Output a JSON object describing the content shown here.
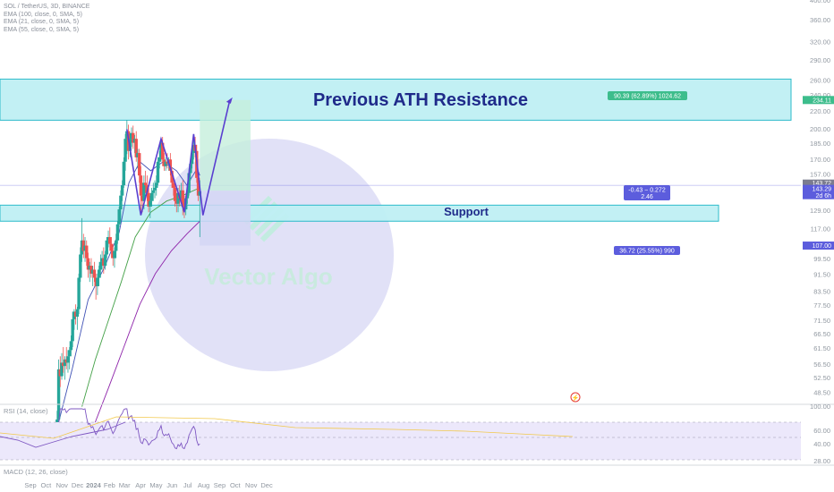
{
  "header": {
    "symbol": "SOL / TetherUS, 3D, BINANCE",
    "ema1": "EMA (100, close, 0, SMA, 5)",
    "ema2": "EMA (21, close, 0, SMA, 5)",
    "ema3": "EMA (55, close, 0, SMA, 5)"
  },
  "annotations": {
    "resistance_label": "Previous ATH Resistance",
    "support_label": "Support",
    "target_box": "90.39 (62.89%) 1024.62",
    "stop_box": "36.72 (25.55%) 990",
    "mid_box_line1": "-0.43 − 0.272",
    "mid_box_line2": "2.46",
    "watermark": "Vector Algo"
  },
  "price_tags": {
    "target": "234.11",
    "current": "143.29",
    "current_countdown": "2d 6h",
    "current_top": "143.72",
    "stop": "107.00"
  },
  "rsi_panel": {
    "label": "RSI (14, close)",
    "ticks": [
      "60.00",
      "40.00",
      "28.00"
    ],
    "top_value": "100.00"
  },
  "macd_panel": {
    "label": "MACD (12, 26, close)"
  },
  "colors": {
    "up_candle": "#26a69a",
    "down_candle": "#ef5350",
    "zone_fill": "#bff0f4",
    "zone_stroke": "#22b8c8",
    "pattern": "#5a3fd0",
    "ema21": "#3f51b5",
    "ema55": "#43a047",
    "ema100": "#8e24aa",
    "target_green": "#3dbd8c",
    "stop_purple": "#5c5ddd"
  },
  "chart_data": {
    "type": "candlestick",
    "title": "SOL / TetherUS, 3D, BINANCE",
    "y_axis": {
      "scale": "log",
      "range": [
        40,
        400
      ],
      "ticks": [
        400,
        360,
        320,
        290,
        260,
        240,
        220,
        200,
        185,
        170,
        157,
        143.29,
        129,
        117,
        107,
        99.5,
        91.5,
        83.5,
        77.5,
        71.5,
        66.5,
        61.5,
        56.5,
        52.5,
        48.5
      ]
    },
    "x_axis": {
      "labels": [
        "Sep",
        "Oct",
        "Nov",
        "Dec",
        "2024",
        "Feb",
        "Mar",
        "Apr",
        "May",
        "Jun",
        "Jul",
        "Aug",
        "Sep",
        "Oct",
        "Nov",
        "Dec"
      ]
    },
    "candles": [
      {
        "x": "2023-11-02",
        "o": 38,
        "h": 44,
        "l": 37,
        "c": 42
      },
      {
        "x": "2023-11-05",
        "o": 42,
        "h": 58,
        "l": 41,
        "c": 55
      },
      {
        "x": "2023-11-08",
        "o": 55,
        "h": 59,
        "l": 50,
        "c": 53
      },
      {
        "x": "2023-11-11",
        "o": 53,
        "h": 60,
        "l": 52,
        "c": 57
      },
      {
        "x": "2023-11-14",
        "o": 57,
        "h": 62,
        "l": 54,
        "c": 56
      },
      {
        "x": "2023-11-17",
        "o": 56,
        "h": 59,
        "l": 52,
        "c": 58
      },
      {
        "x": "2023-11-20",
        "o": 58,
        "h": 62,
        "l": 55,
        "c": 57
      },
      {
        "x": "2023-11-23",
        "o": 57,
        "h": 61,
        "l": 54,
        "c": 59
      },
      {
        "x": "2023-11-26",
        "o": 59,
        "h": 62,
        "l": 55,
        "c": 61
      },
      {
        "x": "2023-11-29",
        "o": 61,
        "h": 66,
        "l": 59,
        "c": 64
      },
      {
        "x": "2023-12-02",
        "o": 64,
        "h": 75,
        "l": 62,
        "c": 72
      },
      {
        "x": "2023-12-05",
        "o": 72,
        "h": 76,
        "l": 68,
        "c": 75
      },
      {
        "x": "2023-12-08",
        "o": 75,
        "h": 78,
        "l": 70,
        "c": 73
      },
      {
        "x": "2023-12-11",
        "o": 73,
        "h": 77,
        "l": 68,
        "c": 76
      },
      {
        "x": "2023-12-14",
        "o": 76,
        "h": 92,
        "l": 74,
        "c": 90
      },
      {
        "x": "2023-12-17",
        "o": 90,
        "h": 106,
        "l": 88,
        "c": 102
      },
      {
        "x": "2023-12-20",
        "o": 102,
        "h": 124,
        "l": 98,
        "c": 110
      },
      {
        "x": "2023-12-23",
        "o": 110,
        "h": 114,
        "l": 100,
        "c": 104
      },
      {
        "x": "2023-12-26",
        "o": 104,
        "h": 112,
        "l": 98,
        "c": 107
      },
      {
        "x": "2023-12-29",
        "o": 107,
        "h": 110,
        "l": 96,
        "c": 100
      },
      {
        "x": "2024-01-01",
        "o": 100,
        "h": 103,
        "l": 90,
        "c": 94
      },
      {
        "x": "2024-01-04",
        "o": 94,
        "h": 98,
        "l": 88,
        "c": 96
      },
      {
        "x": "2024-01-07",
        "o": 96,
        "h": 100,
        "l": 90,
        "c": 92
      },
      {
        "x": "2024-01-10",
        "o": 92,
        "h": 96,
        "l": 86,
        "c": 94
      },
      {
        "x": "2024-01-13",
        "o": 94,
        "h": 98,
        "l": 88,
        "c": 90
      },
      {
        "x": "2024-01-16",
        "o": 90,
        "h": 92,
        "l": 80,
        "c": 86
      },
      {
        "x": "2024-01-19",
        "o": 86,
        "h": 92,
        "l": 82,
        "c": 90
      },
      {
        "x": "2024-01-22",
        "o": 90,
        "h": 96,
        "l": 86,
        "c": 94
      },
      {
        "x": "2024-01-25",
        "o": 94,
        "h": 102,
        "l": 90,
        "c": 98
      },
      {
        "x": "2024-01-28",
        "o": 98,
        "h": 104,
        "l": 94,
        "c": 100
      },
      {
        "x": "2024-01-31",
        "o": 100,
        "h": 106,
        "l": 92,
        "c": 96
      },
      {
        "x": "2024-02-03",
        "o": 96,
        "h": 104,
        "l": 94,
        "c": 102
      },
      {
        "x": "2024-02-06",
        "o": 102,
        "h": 112,
        "l": 100,
        "c": 110
      },
      {
        "x": "2024-02-09",
        "o": 110,
        "h": 116,
        "l": 106,
        "c": 112
      },
      {
        "x": "2024-02-12",
        "o": 112,
        "h": 118,
        "l": 104,
        "c": 108
      },
      {
        "x": "2024-02-15",
        "o": 108,
        "h": 112,
        "l": 100,
        "c": 104
      },
      {
        "x": "2024-02-18",
        "o": 104,
        "h": 108,
        "l": 96,
        "c": 100
      },
      {
        "x": "2024-02-21",
        "o": 100,
        "h": 106,
        "l": 95,
        "c": 104
      },
      {
        "x": "2024-02-24",
        "o": 104,
        "h": 114,
        "l": 100,
        "c": 110
      },
      {
        "x": "2024-02-27",
        "o": 110,
        "h": 122,
        "l": 108,
        "c": 120
      },
      {
        "x": "2024-03-01",
        "o": 120,
        "h": 132,
        "l": 118,
        "c": 130
      },
      {
        "x": "2024-03-04",
        "o": 130,
        "h": 144,
        "l": 122,
        "c": 140
      },
      {
        "x": "2024-03-07",
        "o": 140,
        "h": 152,
        "l": 136,
        "c": 148
      },
      {
        "x": "2024-03-10",
        "o": 148,
        "h": 172,
        "l": 146,
        "c": 168
      },
      {
        "x": "2024-03-13",
        "o": 168,
        "h": 195,
        "l": 160,
        "c": 190
      },
      {
        "x": "2024-03-16",
        "o": 190,
        "h": 210,
        "l": 175,
        "c": 198
      },
      {
        "x": "2024-03-19",
        "o": 198,
        "h": 205,
        "l": 170,
        "c": 178
      },
      {
        "x": "2024-03-22",
        "o": 178,
        "h": 196,
        "l": 172,
        "c": 190
      },
      {
        "x": "2024-03-25",
        "o": 190,
        "h": 202,
        "l": 182,
        "c": 196
      },
      {
        "x": "2024-03-28",
        "o": 196,
        "h": 204,
        "l": 180,
        "c": 186
      },
      {
        "x": "2024-03-31",
        "o": 186,
        "h": 194,
        "l": 176,
        "c": 190
      },
      {
        "x": "2024-04-03",
        "o": 190,
        "h": 198,
        "l": 168,
        "c": 172
      },
      {
        "x": "2024-04-06",
        "o": 172,
        "h": 180,
        "l": 162,
        "c": 176
      },
      {
        "x": "2024-04-09",
        "o": 176,
        "h": 180,
        "l": 150,
        "c": 156
      },
      {
        "x": "2024-04-12",
        "o": 156,
        "h": 164,
        "l": 128,
        "c": 140
      },
      {
        "x": "2024-04-15",
        "o": 140,
        "h": 150,
        "l": 128,
        "c": 136
      },
      {
        "x": "2024-04-18",
        "o": 136,
        "h": 156,
        "l": 130,
        "c": 150
      },
      {
        "x": "2024-04-21",
        "o": 150,
        "h": 160,
        "l": 142,
        "c": 148
      },
      {
        "x": "2024-04-24",
        "o": 148,
        "h": 156,
        "l": 136,
        "c": 142
      },
      {
        "x": "2024-04-27",
        "o": 142,
        "h": 146,
        "l": 128,
        "c": 132
      },
      {
        "x": "2024-04-30",
        "o": 132,
        "h": 140,
        "l": 124,
        "c": 136
      },
      {
        "x": "2024-05-03",
        "o": 136,
        "h": 146,
        "l": 132,
        "c": 142
      },
      {
        "x": "2024-05-06",
        "o": 142,
        "h": 150,
        "l": 136,
        "c": 144
      },
      {
        "x": "2024-05-09",
        "o": 144,
        "h": 152,
        "l": 138,
        "c": 146
      },
      {
        "x": "2024-05-12",
        "o": 146,
        "h": 156,
        "l": 140,
        "c": 150
      },
      {
        "x": "2024-05-15",
        "o": 150,
        "h": 172,
        "l": 148,
        "c": 168
      },
      {
        "x": "2024-05-18",
        "o": 168,
        "h": 178,
        "l": 162,
        "c": 172
      },
      {
        "x": "2024-05-21",
        "o": 172,
        "h": 190,
        "l": 168,
        "c": 186
      },
      {
        "x": "2024-05-24",
        "o": 186,
        "h": 192,
        "l": 164,
        "c": 170
      },
      {
        "x": "2024-05-27",
        "o": 170,
        "h": 176,
        "l": 160,
        "c": 164
      },
      {
        "x": "2024-05-30",
        "o": 164,
        "h": 172,
        "l": 160,
        "c": 168
      },
      {
        "x": "2024-06-02",
        "o": 168,
        "h": 176,
        "l": 162,
        "c": 166
      },
      {
        "x": "2024-06-05",
        "o": 166,
        "h": 172,
        "l": 160,
        "c": 170
      },
      {
        "x": "2024-06-08",
        "o": 170,
        "h": 176,
        "l": 156,
        "c": 160
      },
      {
        "x": "2024-06-11",
        "o": 160,
        "h": 162,
        "l": 146,
        "c": 150
      },
      {
        "x": "2024-06-14",
        "o": 150,
        "h": 156,
        "l": 140,
        "c": 146
      },
      {
        "x": "2024-06-17",
        "o": 146,
        "h": 150,
        "l": 132,
        "c": 136
      },
      {
        "x": "2024-06-20",
        "o": 136,
        "h": 142,
        "l": 128,
        "c": 134
      },
      {
        "x": "2024-06-23",
        "o": 134,
        "h": 146,
        "l": 128,
        "c": 142
      },
      {
        "x": "2024-06-26",
        "o": 142,
        "h": 148,
        "l": 132,
        "c": 138
      },
      {
        "x": "2024-06-29",
        "o": 138,
        "h": 150,
        "l": 134,
        "c": 144
      },
      {
        "x": "2024-07-02",
        "o": 144,
        "h": 152,
        "l": 126,
        "c": 132
      },
      {
        "x": "2024-07-05",
        "o": 132,
        "h": 140,
        "l": 124,
        "c": 130
      },
      {
        "x": "2024-07-08",
        "o": 130,
        "h": 140,
        "l": 126,
        "c": 138
      },
      {
        "x": "2024-07-11",
        "o": 138,
        "h": 148,
        "l": 134,
        "c": 142
      },
      {
        "x": "2024-07-14",
        "o": 142,
        "h": 162,
        "l": 140,
        "c": 158
      },
      {
        "x": "2024-07-17",
        "o": 158,
        "h": 170,
        "l": 152,
        "c": 166
      },
      {
        "x": "2024-07-20",
        "o": 166,
        "h": 180,
        "l": 162,
        "c": 176
      },
      {
        "x": "2024-07-23",
        "o": 176,
        "h": 194,
        "l": 170,
        "c": 184
      },
      {
        "x": "2024-07-26",
        "o": 184,
        "h": 192,
        "l": 172,
        "c": 178
      },
      {
        "x": "2024-07-29",
        "o": 178,
        "h": 184,
        "l": 150,
        "c": 154
      },
      {
        "x": "2024-08-01",
        "o": 154,
        "h": 158,
        "l": 136,
        "c": 140
      },
      {
        "x": "2024-08-04",
        "o": 140,
        "h": 152,
        "l": 112,
        "c": 143.29
      }
    ],
    "ema21": [
      [
        "2023-11-02",
        40
      ],
      [
        "2023-12-01",
        55
      ],
      [
        "2024-01-01",
        80
      ],
      [
        "2024-02-01",
        95
      ],
      [
        "2024-03-01",
        115
      ],
      [
        "2024-03-20",
        150
      ],
      [
        "2024-04-10",
        168
      ],
      [
        "2024-05-01",
        160
      ],
      [
        "2024-05-25",
        168
      ],
      [
        "2024-06-20",
        160
      ],
      [
        "2024-07-10",
        148
      ],
      [
        "2024-07-30",
        162
      ],
      [
        "2024-08-04",
        156
      ]
    ],
    "ema55": [
      [
        "2023-12-20",
        45
      ],
      [
        "2024-01-15",
        58
      ],
      [
        "2024-02-10",
        72
      ],
      [
        "2024-03-05",
        88
      ],
      [
        "2024-04-01",
        112
      ],
      [
        "2024-05-01",
        128
      ],
      [
        "2024-06-01",
        136
      ],
      [
        "2024-07-01",
        140
      ],
      [
        "2024-08-04",
        146
      ]
    ],
    "ema100": [
      [
        "2024-01-10",
        40
      ],
      [
        "2024-02-10",
        50
      ],
      [
        "2024-03-10",
        62
      ],
      [
        "2024-04-10",
        78
      ],
      [
        "2024-05-10",
        92
      ],
      [
        "2024-06-10",
        104
      ],
      [
        "2024-07-10",
        114
      ],
      [
        "2024-08-04",
        122
      ]
    ],
    "pattern_path": [
      [
        "2024-03-16",
        200
      ],
      [
        "2024-04-12",
        126
      ],
      [
        "2024-05-21",
        190
      ],
      [
        "2024-07-05",
        128
      ],
      [
        "2024-07-23",
        195
      ],
      [
        "2024-08-10",
        126
      ],
      [
        "2024-10-01",
        234
      ]
    ],
    "zones": [
      {
        "name": "Previous ATH Resistance",
        "low": 210,
        "high": 262
      },
      {
        "name": "Support",
        "low": 122,
        "high": 133
      }
    ],
    "long_position": {
      "entry": 143.72,
      "target": 234.11,
      "stop": 107.0,
      "start": "2024-08-04",
      "end": "2024-11-10"
    }
  }
}
